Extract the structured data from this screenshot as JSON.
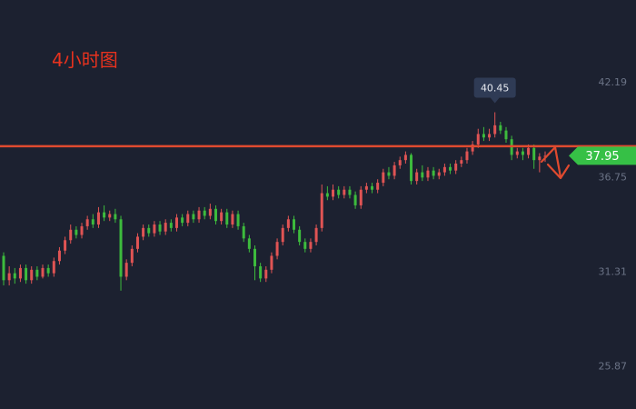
{
  "annotation": "4小时图",
  "colors": {
    "background": "#1c2130",
    "up": "#e05454",
    "down": "#3dbb3d",
    "level_line": "#e04a2f",
    "arrow": "#e04a2f",
    "price_tag": "#36c046",
    "peak_tag": "#2f3b55",
    "axis_text": "#6b7386"
  },
  "chart_data": {
    "type": "candlestick",
    "y_ticks": [
      "42.19",
      "36.75",
      "31.31",
      "25.87"
    ],
    "ylim": [
      23.4,
      46.9
    ],
    "current_price": "37.95",
    "peak_label": "40.45",
    "horizontal_line": 38.5,
    "candles": [
      [
        32.2,
        30.8,
        32.4,
        30.5
      ],
      [
        30.8,
        31.2,
        31.6,
        30.5
      ],
      [
        31.2,
        30.9,
        31.5,
        30.6
      ],
      [
        30.9,
        31.5,
        31.7,
        30.7
      ],
      [
        31.5,
        30.8,
        31.7,
        30.6
      ],
      [
        30.8,
        31.4,
        31.6,
        30.6
      ],
      [
        31.4,
        31.0,
        31.6,
        30.8
      ],
      [
        31.0,
        31.5,
        31.7,
        30.9
      ],
      [
        31.5,
        31.2,
        31.7,
        31.0
      ],
      [
        31.2,
        31.9,
        32.1,
        31.0
      ],
      [
        31.9,
        32.5,
        32.7,
        31.7
      ],
      [
        32.5,
        33.1,
        33.3,
        32.3
      ],
      [
        33.1,
        33.7,
        34.0,
        32.9
      ],
      [
        33.7,
        33.4,
        33.9,
        33.2
      ],
      [
        33.4,
        33.9,
        34.1,
        33.2
      ],
      [
        33.9,
        34.3,
        34.5,
        33.7
      ],
      [
        34.3,
        34.0,
        34.6,
        33.8
      ],
      [
        34.0,
        34.7,
        35.0,
        33.8
      ],
      [
        34.7,
        34.4,
        35.1,
        34.2
      ],
      [
        34.4,
        34.6,
        34.8,
        34.2
      ],
      [
        34.6,
        34.3,
        34.9,
        34.1
      ],
      [
        34.3,
        31.0,
        34.5,
        30.2
      ],
      [
        31.0,
        31.8,
        32.0,
        30.8
      ],
      [
        31.8,
        32.6,
        32.8,
        31.6
      ],
      [
        32.6,
        33.3,
        33.5,
        32.4
      ],
      [
        33.3,
        33.8,
        34.0,
        33.1
      ],
      [
        33.8,
        33.5,
        34.0,
        33.3
      ],
      [
        33.5,
        34.0,
        34.2,
        33.3
      ],
      [
        34.0,
        33.6,
        34.2,
        33.4
      ],
      [
        33.6,
        34.1,
        34.3,
        33.4
      ],
      [
        34.1,
        33.8,
        34.3,
        33.6
      ],
      [
        33.8,
        34.4,
        34.6,
        33.6
      ],
      [
        34.4,
        34.1,
        34.6,
        33.9
      ],
      [
        34.1,
        34.6,
        34.8,
        33.9
      ],
      [
        34.6,
        34.3,
        34.8,
        34.1
      ],
      [
        34.3,
        34.8,
        35.0,
        34.1
      ],
      [
        34.8,
        34.5,
        35.0,
        34.3
      ],
      [
        34.5,
        34.9,
        35.2,
        34.3
      ],
      [
        34.9,
        34.2,
        35.1,
        34.0
      ],
      [
        34.2,
        34.7,
        34.9,
        34.0
      ],
      [
        34.7,
        34.0,
        34.9,
        33.8
      ],
      [
        34.0,
        34.6,
        34.8,
        33.8
      ],
      [
        34.6,
        33.9,
        34.8,
        33.7
      ],
      [
        33.9,
        33.2,
        34.1,
        33.0
      ],
      [
        33.2,
        32.6,
        33.4,
        32.4
      ],
      [
        32.6,
        31.6,
        32.8,
        30.8
      ],
      [
        31.6,
        30.9,
        31.8,
        30.7
      ],
      [
        30.9,
        31.4,
        31.6,
        30.7
      ],
      [
        31.4,
        32.2,
        32.4,
        31.2
      ],
      [
        32.2,
        33.0,
        33.2,
        32.0
      ],
      [
        33.0,
        33.8,
        34.0,
        32.8
      ],
      [
        33.8,
        34.3,
        34.5,
        33.6
      ],
      [
        34.3,
        33.7,
        34.5,
        33.5
      ],
      [
        33.7,
        33.0,
        33.9,
        32.8
      ],
      [
        33.0,
        32.6,
        33.2,
        32.4
      ],
      [
        32.6,
        33.0,
        33.2,
        32.4
      ],
      [
        33.0,
        33.8,
        34.0,
        32.8
      ],
      [
        33.8,
        35.8,
        36.3,
        33.6
      ],
      [
        35.8,
        35.6,
        36.2,
        35.4
      ],
      [
        35.6,
        36.0,
        36.3,
        35.4
      ],
      [
        36.0,
        35.7,
        36.2,
        35.5
      ],
      [
        35.7,
        36.0,
        36.2,
        35.5
      ],
      [
        36.0,
        35.7,
        36.2,
        35.5
      ],
      [
        35.7,
        35.1,
        35.9,
        34.9
      ],
      [
        35.1,
        36.0,
        36.2,
        34.9
      ],
      [
        36.0,
        36.2,
        36.4,
        35.8
      ],
      [
        36.2,
        36.0,
        36.4,
        35.8
      ],
      [
        36.0,
        36.4,
        36.6,
        35.8
      ],
      [
        36.4,
        37.0,
        37.2,
        36.2
      ],
      [
        37.0,
        36.8,
        37.3,
        36.6
      ],
      [
        36.8,
        37.4,
        37.6,
        36.6
      ],
      [
        37.4,
        37.7,
        37.9,
        37.2
      ],
      [
        37.7,
        38.0,
        38.2,
        37.5
      ],
      [
        38.0,
        36.5,
        38.1,
        36.3
      ],
      [
        36.5,
        37.0,
        37.2,
        36.3
      ],
      [
        37.0,
        36.7,
        37.4,
        36.5
      ],
      [
        36.7,
        37.1,
        37.3,
        36.5
      ],
      [
        37.1,
        36.8,
        37.3,
        36.6
      ],
      [
        36.8,
        37.0,
        37.2,
        36.6
      ],
      [
        37.0,
        37.3,
        37.5,
        36.8
      ],
      [
        37.3,
        37.1,
        37.5,
        36.9
      ],
      [
        37.1,
        37.5,
        37.7,
        36.9
      ],
      [
        37.5,
        37.7,
        37.9,
        37.3
      ],
      [
        37.7,
        38.2,
        38.4,
        37.5
      ],
      [
        38.2,
        38.6,
        38.8,
        38.0
      ],
      [
        38.6,
        39.2,
        39.5,
        38.4
      ],
      [
        39.2,
        39.0,
        39.6,
        38.8
      ],
      [
        39.0,
        39.2,
        39.5,
        38.8
      ],
      [
        39.2,
        39.7,
        40.45,
        39.0
      ],
      [
        39.7,
        39.4,
        39.9,
        39.2
      ],
      [
        39.4,
        38.9,
        39.6,
        38.7
      ],
      [
        38.9,
        38.0,
        39.1,
        37.7
      ],
      [
        38.0,
        38.2,
        38.4,
        37.8
      ],
      [
        38.2,
        38.0,
        38.4,
        37.7
      ],
      [
        38.0,
        38.4,
        38.6,
        37.8
      ],
      [
        38.4,
        37.7,
        38.6,
        37.2
      ],
      [
        37.7,
        37.9,
        38.1,
        37.0
      ],
      [
        37.9,
        37.95,
        38.2,
        37.6
      ]
    ]
  }
}
